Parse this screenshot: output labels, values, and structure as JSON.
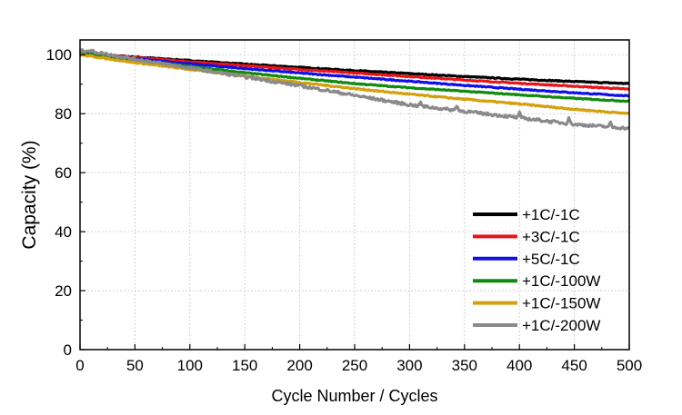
{
  "chart_data": {
    "type": "line",
    "title": "",
    "xlabel": "Cycle Number / Cycles",
    "ylabel": "Capacity (%)",
    "xlim": [
      0,
      500
    ],
    "ylim": [
      0,
      105
    ],
    "xticks": [
      0,
      50,
      100,
      150,
      200,
      250,
      300,
      350,
      400,
      450,
      500
    ],
    "yticks": [
      0,
      20,
      40,
      60,
      80,
      100
    ],
    "grid": true,
    "legend_position": "bottom-right",
    "series": [
      {
        "name": "+1C/-1C",
        "color": "#000000",
        "x": [
          0,
          50,
          100,
          150,
          200,
          250,
          300,
          350,
          400,
          450,
          500
        ],
        "y": [
          100.5,
          99.2,
          98.0,
          96.8,
          95.7,
          94.6,
          93.6,
          92.6,
          91.7,
          90.9,
          90.2
        ],
        "noise": 0.15
      },
      {
        "name": "+3C/-1C",
        "color": "#e8141a",
        "x": [
          0,
          50,
          100,
          150,
          200,
          250,
          300,
          350,
          400,
          450,
          500
        ],
        "y": [
          100.5,
          99.0,
          97.6,
          96.3,
          95.0,
          93.8,
          92.6,
          91.4,
          90.3,
          89.3,
          88.3
        ],
        "noise": 0.15
      },
      {
        "name": "+5C/-1C",
        "color": "#1010e6",
        "x": [
          0,
          50,
          100,
          150,
          200,
          250,
          300,
          350,
          400,
          450,
          500
        ],
        "y": [
          100.5,
          98.6,
          96.9,
          95.3,
          93.8,
          92.4,
          91.0,
          89.6,
          88.3,
          87.1,
          86.0
        ],
        "noise": 0.15
      },
      {
        "name": "+1C/-100W",
        "color": "#108a10",
        "x": [
          0,
          50,
          100,
          150,
          200,
          250,
          300,
          350,
          400,
          450,
          500
        ],
        "y": [
          100.5,
          98.2,
          96.0,
          93.9,
          92.0,
          90.2,
          88.8,
          87.6,
          86.4,
          85.2,
          84.2
        ],
        "noise": 0.15
      },
      {
        "name": "+1C/-150W",
        "color": "#d4a010",
        "x": [
          0,
          50,
          100,
          150,
          200,
          250,
          300,
          350,
          400,
          450,
          500
        ],
        "y": [
          100.0,
          97.3,
          95.0,
          92.8,
          90.6,
          88.5,
          86.6,
          84.9,
          83.3,
          81.5,
          80.0
        ],
        "noise": 0.2
      },
      {
        "name": "+1C/-200W",
        "color": "#8a8a8a",
        "x": [
          0,
          5,
          50,
          100,
          150,
          200,
          250,
          300,
          350,
          400,
          450,
          500
        ],
        "y": [
          101.2,
          101.5,
          98.5,
          95.5,
          92.5,
          89.5,
          86.2,
          83.0,
          80.8,
          78.6,
          76.4,
          75.0
        ],
        "noise": 0.45,
        "spikes": [
          [
            310,
            1.2
          ],
          [
            343,
            1.8
          ],
          [
            400,
            1.6
          ],
          [
            445,
            2.2
          ],
          [
            483,
            1.4
          ]
        ]
      }
    ]
  }
}
